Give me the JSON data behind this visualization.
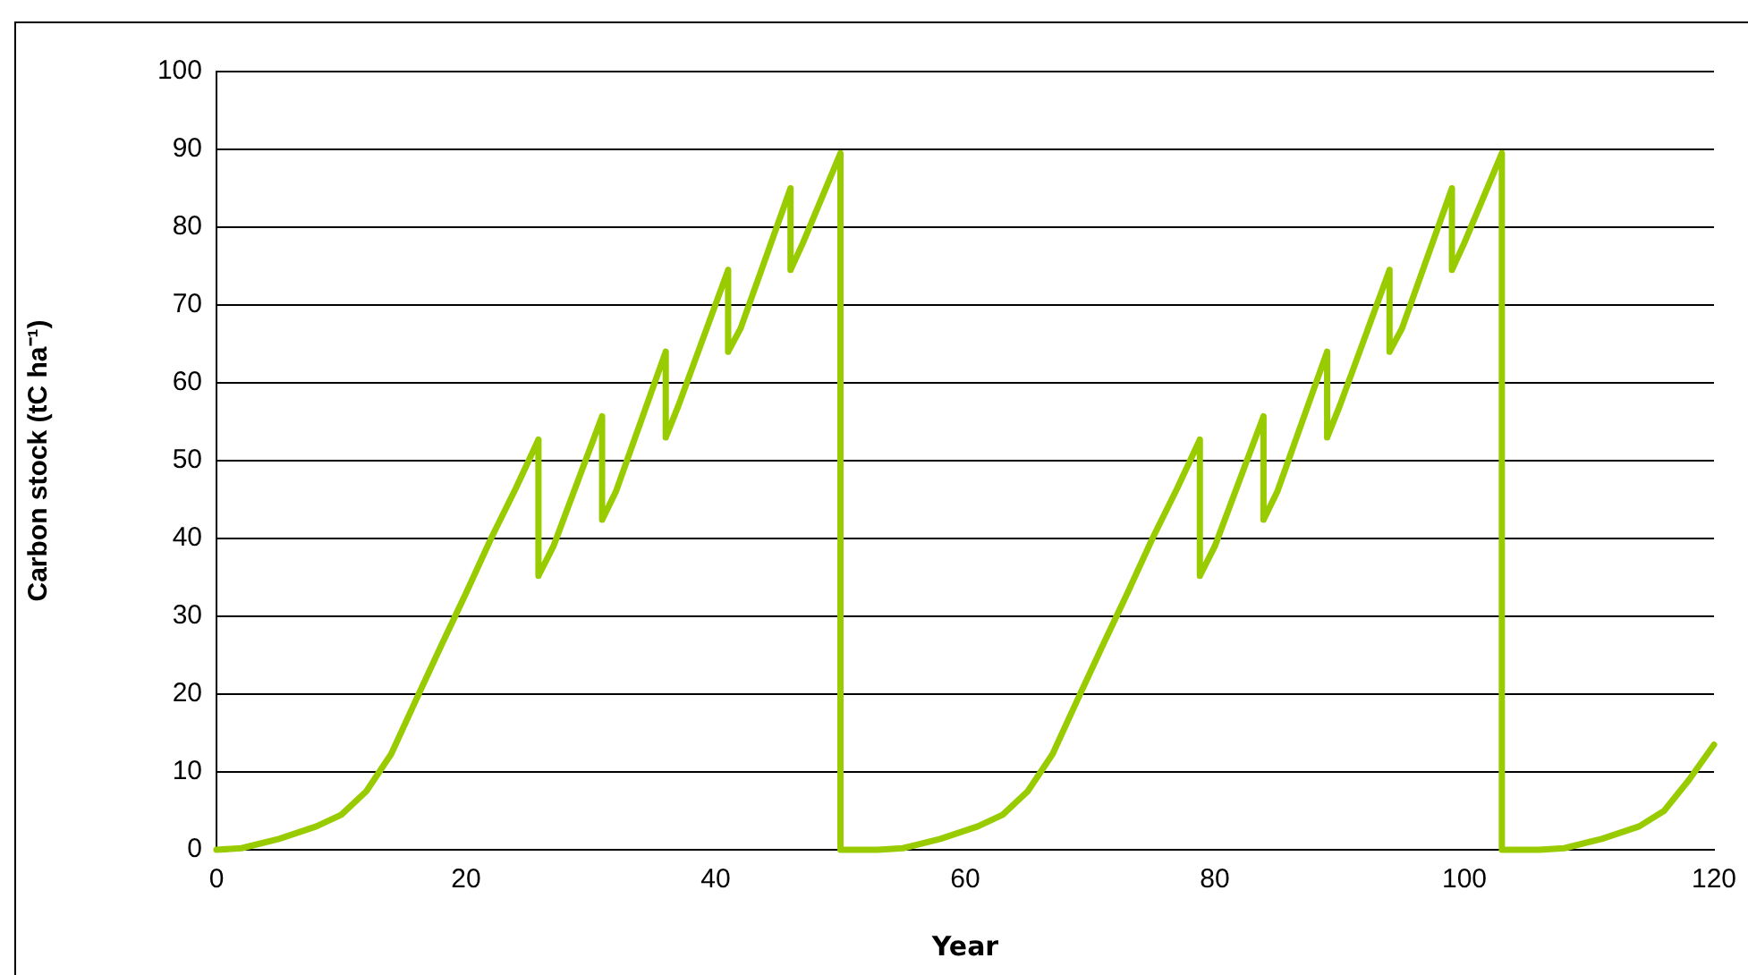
{
  "chart_data": {
    "type": "line",
    "xlabel": "Year",
    "ylabel": "Carbon stock (tC ha⁻¹)",
    "x": [
      0,
      2,
      5,
      8,
      10,
      12,
      14,
      16,
      18,
      20,
      22,
      24,
      25.8,
      25.8,
      27,
      30.9,
      30.9,
      32,
      36,
      36,
      37,
      41,
      41,
      42,
      46,
      46,
      47,
      50,
      50,
      53,
      55,
      58,
      61,
      63,
      65,
      67,
      69,
      71,
      73,
      75,
      77,
      78.8,
      78.8,
      80,
      83.9,
      83.9,
      85,
      89,
      89,
      90,
      94,
      94,
      95,
      99,
      99,
      100,
      103,
      103,
      106,
      108,
      111,
      114,
      116,
      118,
      120
    ],
    "series": [
      {
        "color": "#99cc00",
        "values": [
          0,
          0.2,
          1.4,
          3,
          4.5,
          7.5,
          12.3,
          19.3,
          26.2,
          33,
          40,
          46.5,
          52.7,
          35.2,
          39,
          55.7,
          42.4,
          46,
          64,
          53,
          57,
          74.5,
          64,
          67,
          85,
          74.5,
          78,
          89.5,
          0,
          0,
          0.2,
          1.4,
          3,
          4.5,
          7.5,
          12.3,
          19.3,
          26.2,
          33,
          40,
          46.5,
          52.7,
          35.2,
          39,
          55.7,
          42.4,
          46,
          64,
          53,
          57,
          74.5,
          64,
          67,
          85,
          74.5,
          78,
          89.5,
          0,
          0,
          0.2,
          1.4,
          3,
          5,
          9,
          13.5
        ]
      }
    ],
    "xlim": [
      0,
      120
    ],
    "xticks": [
      0,
      20,
      40,
      60,
      80,
      100,
      120
    ],
    "ylim": [
      0,
      100
    ],
    "yticks": [
      0,
      10,
      20,
      30,
      40,
      50,
      60,
      70,
      80,
      90,
      100
    ],
    "grid": "y",
    "legend": false,
    "marker": "none",
    "line_style": "solid"
  }
}
